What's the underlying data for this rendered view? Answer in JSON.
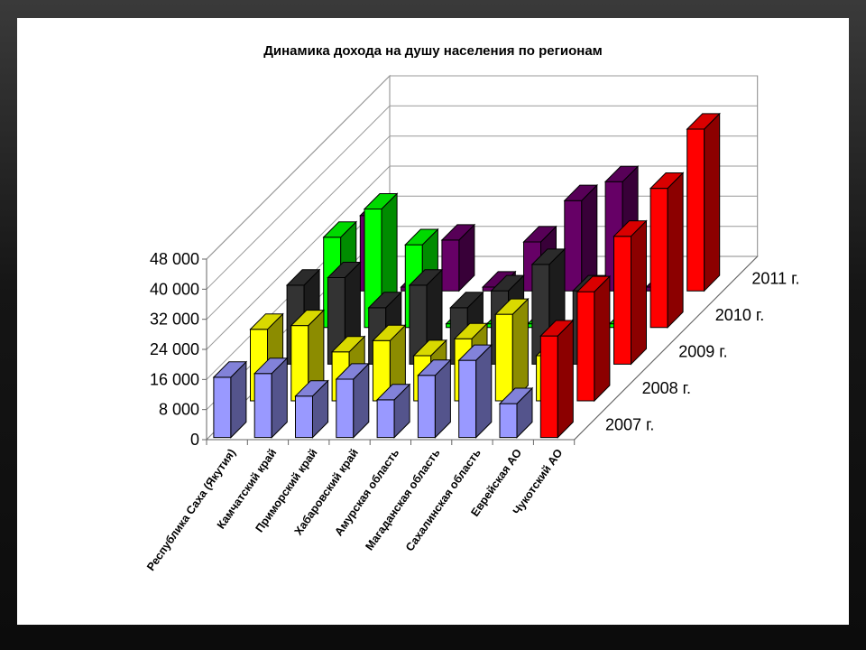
{
  "chart_data": {
    "type": "bar",
    "variant": "3d-column",
    "title": "Динамика дохода на душу населения по регионам",
    "xlabel": "",
    "ylabel": "",
    "categories": [
      "Республика Саха (Якутия)",
      "Камчатский край",
      "Приморский край",
      "Хабаровский край",
      "Амурская область",
      "Магаданская область",
      "Сахалинская область",
      "Еврейская АО",
      "Чукотский АО"
    ],
    "series": [
      {
        "name": "2007 г.",
        "color": "#9999ff",
        "values": [
          16000,
          17000,
          11000,
          15500,
          10000,
          16500,
          20500,
          9000,
          27000
        ]
      },
      {
        "name": "2008 г.",
        "color": "#ffff00",
        "values": [
          19000,
          20000,
          13000,
          16000,
          12000,
          16500,
          23000,
          12000,
          29000
        ]
      },
      {
        "name": "2009 г.",
        "color": "#333333",
        "values": [
          21000,
          23000,
          15000,
          21000,
          15000,
          19500,
          26500,
          19500,
          34000
        ]
      },
      {
        "name": "2010 г.",
        "color": "#00ff00",
        "values": [
          24000,
          31500,
          22000,
          1000,
          1000,
          1000,
          1000,
          1000,
          37000
        ]
      },
      {
        "name": "2011 г.",
        "color": "#660066",
        "values": [
          20000,
          1000,
          13500,
          1000,
          13000,
          24000,
          29000,
          1000,
          43000
        ]
      }
    ],
    "series_colors_override": {
      "Чукотский АО": "#ff0000"
    },
    "yticks": [
      "0",
      "8 000",
      "16 000",
      "24 000",
      "32 000",
      "40 000",
      "48 000"
    ],
    "ylim": [
      0,
      48000
    ],
    "grid": true,
    "legend": "none"
  }
}
